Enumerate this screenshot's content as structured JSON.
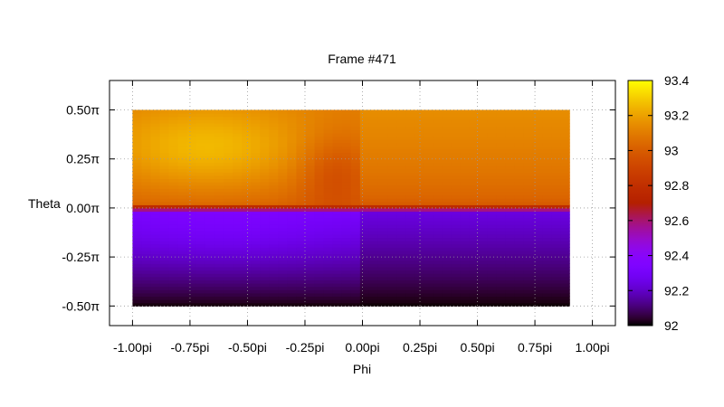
{
  "chart_data": {
    "type": "heatmap",
    "title": "Frame #471",
    "xlabel": "Phi",
    "ylabel": "Theta",
    "xlim": [
      -1.1,
      1.1
    ],
    "ylim": [
      -0.6,
      0.65
    ],
    "x_ticks": [
      -1.0,
      -0.75,
      -0.5,
      -0.25,
      0.0,
      0.25,
      0.5,
      0.75,
      1.0
    ],
    "x_tick_labels": [
      "-1.00pi",
      "-0.75pi",
      "-0.50pi",
      "-0.25pi",
      "0.00pi",
      "0.25pi",
      "0.50pi",
      "0.75pi",
      "1.00pi"
    ],
    "y_ticks": [
      0.5,
      0.25,
      0.0,
      -0.25,
      -0.5
    ],
    "y_tick_labels": [
      "0.50π",
      "0.25π",
      "0.00π",
      "-0.25π",
      "-0.50π"
    ],
    "grid": true,
    "data_extent": {
      "x": [
        -1.0,
        0.9
      ],
      "y": [
        -0.5,
        0.5
      ]
    },
    "colorbar": {
      "min": 92,
      "max": 93.4,
      "ticks": [
        93.4,
        93.2,
        93,
        92.8,
        92.6,
        92.4,
        92.2,
        92
      ],
      "tick_labels": [
        "93.4",
        "93.2",
        "93",
        "92.8",
        "92.6",
        "92.4",
        "92.2",
        "92"
      ],
      "palette": "gnuplot"
    },
    "regions": [
      {
        "name": "upper-left",
        "x": [
          -1.0,
          0.0
        ],
        "y": [
          0.02,
          0.5
        ],
        "value_range": [
          92.95,
          93.28
        ],
        "peak": {
          "x": -0.68,
          "y": 0.3,
          "value": 93.28
        }
      },
      {
        "name": "upper-right",
        "x": [
          0.0,
          0.9
        ],
        "y": [
          0.02,
          0.5
        ],
        "value_range": [
          92.98,
          93.15
        ]
      },
      {
        "name": "transition",
        "x": [
          -1.0,
          0.9
        ],
        "y": [
          -0.02,
          0.02
        ],
        "value_range": [
          92.5,
          92.85
        ]
      },
      {
        "name": "lower-left",
        "x": [
          -1.0,
          0.0
        ],
        "y": [
          -0.5,
          -0.02
        ],
        "value_range": [
          92.02,
          92.35
        ]
      },
      {
        "name": "lower-right",
        "x": [
          0.0,
          0.9
        ],
        "y": [
          -0.5,
          -0.02
        ],
        "value_range": [
          92.02,
          92.25
        ]
      }
    ]
  }
}
